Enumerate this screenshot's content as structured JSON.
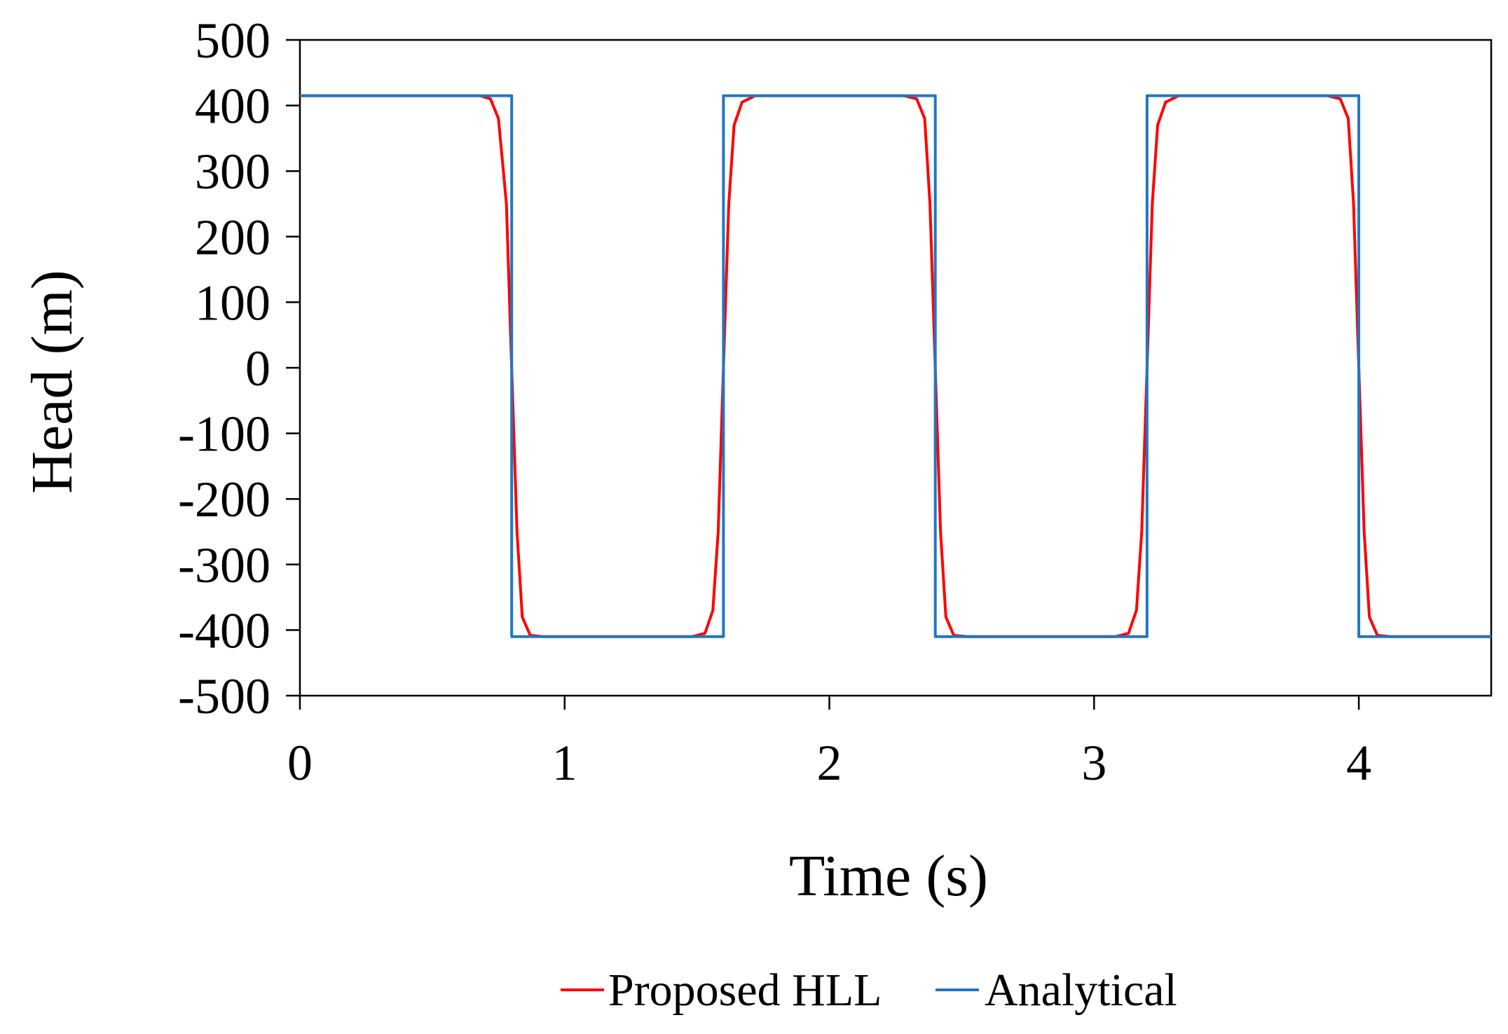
{
  "chart_data": {
    "type": "line",
    "xlabel": "Time (s)",
    "ylabel": "Head (m)",
    "xlim": [
      0,
      4.5
    ],
    "ylim": [
      -500,
      500
    ],
    "xticks": [
      0,
      1,
      2,
      3,
      4
    ],
    "yticks": [
      500,
      400,
      300,
      200,
      100,
      0,
      -100,
      -200,
      -300,
      -400,
      -500
    ],
    "grid": false,
    "legend_position": "bottom-center",
    "series": [
      {
        "name": "Proposed HLL",
        "color": "#ff0000",
        "x": [
          0,
          0.68,
          0.72,
          0.75,
          0.78,
          0.8,
          0.82,
          0.84,
          0.87,
          0.92,
          1.48,
          1.53,
          1.56,
          1.58,
          1.6,
          1.62,
          1.64,
          1.67,
          1.72,
          2.28,
          2.33,
          2.36,
          2.38,
          2.4,
          2.42,
          2.44,
          2.47,
          2.52,
          3.08,
          3.13,
          3.16,
          3.18,
          3.2,
          3.22,
          3.24,
          3.27,
          3.32,
          3.88,
          3.93,
          3.96,
          3.98,
          4.0,
          4.02,
          4.04,
          4.07,
          4.12,
          4.5
        ],
        "y": [
          415,
          415,
          410,
          380,
          250,
          0,
          -250,
          -380,
          -408,
          -410,
          -410,
          -405,
          -370,
          -250,
          0,
          250,
          370,
          405,
          415,
          415,
          410,
          380,
          250,
          0,
          -250,
          -380,
          -408,
          -410,
          -410,
          -405,
          -370,
          -250,
          0,
          250,
          370,
          405,
          415,
          415,
          410,
          380,
          250,
          0,
          -250,
          -380,
          -408,
          -410,
          -410
        ]
      },
      {
        "name": "Analytical",
        "color": "#1f77c4",
        "x": [
          0,
          0.8,
          0.8,
          1.6,
          1.6,
          2.4,
          2.4,
          3.2,
          3.2,
          4.0,
          4.0,
          4.5
        ],
        "y": [
          415,
          415,
          -410,
          -410,
          415,
          415,
          -410,
          -410,
          415,
          415,
          -410,
          -410
        ]
      }
    ]
  }
}
